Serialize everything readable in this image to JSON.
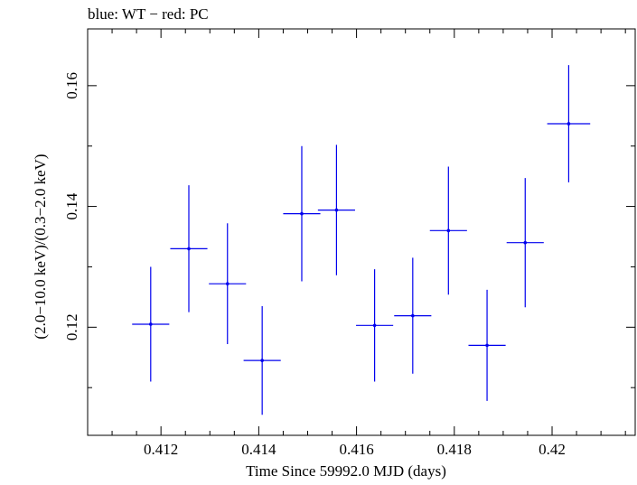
{
  "chart_data": {
    "type": "scatter",
    "title": "blue: WT − red: PC",
    "xlabel": "Time Since 59992.0 MJD (days)",
    "ylabel": "(2.0−10.0 keV)/(0.3−2.0 keV)",
    "xlim": [
      0.4105,
      0.4217
    ],
    "ylim": [
      0.1021,
      0.1694
    ],
    "x_ticks": [
      0.412,
      0.414,
      0.416,
      0.418,
      0.42
    ],
    "x_tick_labels": [
      "0.412",
      "0.414",
      "0.416",
      "0.418",
      "0.42"
    ],
    "y_ticks": [
      0.12,
      0.14,
      0.16
    ],
    "y_tick_labels": [
      "0.12",
      "0.14",
      "0.16"
    ],
    "grid": false,
    "series": [
      {
        "color": "#0000ee",
        "points": [
          {
            "x": 0.41179,
            "xerr": 0.00038,
            "y": 0.1205,
            "yerr": 0.0095
          },
          {
            "x": 0.41257,
            "xerr": 0.00038,
            "y": 0.133,
            "yerr": 0.0105
          },
          {
            "x": 0.41336,
            "xerr": 0.00038,
            "y": 0.1272,
            "yerr": 0.01
          },
          {
            "x": 0.41407,
            "xerr": 0.00038,
            "y": 0.1145,
            "yerr": 0.009
          },
          {
            "x": 0.41488,
            "xerr": 0.00038,
            "y": 0.1388,
            "yerr": 0.0112
          },
          {
            "x": 0.41559,
            "xerr": 0.00038,
            "y": 0.1394,
            "yerr": 0.0108
          },
          {
            "x": 0.41637,
            "xerr": 0.00038,
            "y": 0.1203,
            "yerr": 0.0093
          },
          {
            "x": 0.41715,
            "xerr": 0.00038,
            "y": 0.1219,
            "yerr": 0.0096
          },
          {
            "x": 0.41788,
            "xerr": 0.00038,
            "y": 0.136,
            "yerr": 0.0106
          },
          {
            "x": 0.41867,
            "xerr": 0.00038,
            "y": 0.117,
            "yerr": 0.0092
          },
          {
            "x": 0.41945,
            "xerr": 0.00038,
            "y": 0.134,
            "yerr": 0.0107
          },
          {
            "x": 0.42034,
            "xerr": 0.00044,
            "y": 0.1537,
            "yerr": 0.0097
          }
        ]
      }
    ]
  }
}
